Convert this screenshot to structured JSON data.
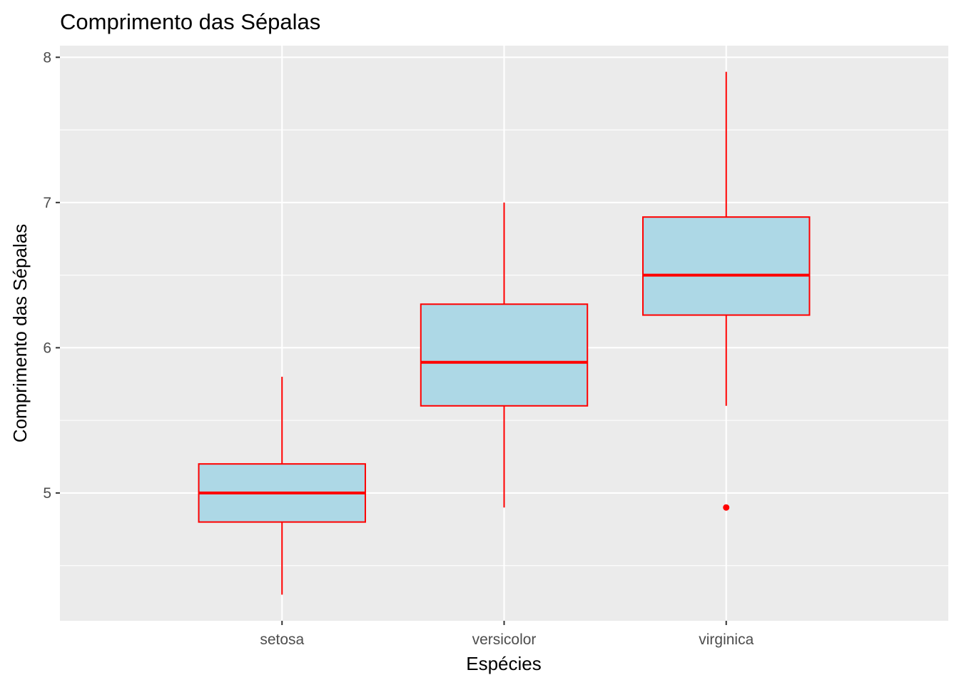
{
  "chart_data": {
    "type": "boxplot",
    "title": "Comprimento das Sépalas",
    "xlabel": "Espécies",
    "ylabel": "Comprimento das Sépalas",
    "categories": [
      "setosa",
      "versicolor",
      "virginica"
    ],
    "boxes": [
      {
        "category": "setosa",
        "whisker_low": 4.3,
        "q1": 4.8,
        "median": 5.0,
        "q3": 5.2,
        "whisker_high": 5.8,
        "outliers": []
      },
      {
        "category": "versicolor",
        "whisker_low": 4.9,
        "q1": 5.6,
        "median": 5.9,
        "q3": 6.3,
        "whisker_high": 7.0,
        "outliers": []
      },
      {
        "category": "virginica",
        "whisker_low": 5.6,
        "q1": 6.225,
        "median": 6.5,
        "q3": 6.9,
        "whisker_high": 7.9,
        "outliers": [
          4.9
        ]
      }
    ],
    "y_ticks": [
      5,
      6,
      7,
      8
    ],
    "y_tick_labels": [
      "5",
      "6",
      "7",
      "8"
    ],
    "ylim": [
      4.12,
      8.08
    ],
    "grid": true,
    "colors": {
      "panel_background": "#ebebeb",
      "grid": "#ffffff",
      "box_fill": "#add8e6",
      "box_outline": "#ff0000",
      "outlier": "#ff0000"
    }
  }
}
